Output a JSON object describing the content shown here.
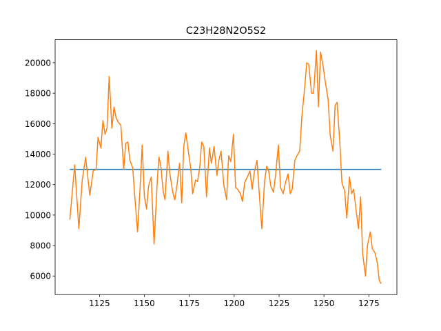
{
  "chart_data": {
    "type": "line",
    "title": "C23H28N2O5S2",
    "series": [
      {
        "color": "#1f77b4",
        "x": [
          1108.5,
          1281.9
        ],
        "values": [
          13000,
          13000
        ]
      },
      {
        "color": "#ff7f0e",
        "x": [
          1108.5,
          1111.2,
          1113.5,
          1115.4,
          1117.3,
          1119.6,
          1121.5,
          1123.1,
          1124.2,
          1125.8,
          1126.9,
          1128.1,
          1129.2,
          1130.4,
          1131.9,
          1133.1,
          1134.2,
          1135.4,
          1136.9,
          1138.5,
          1139.6,
          1140.8,
          1141.9,
          1143.5,
          1144.6,
          1146.2,
          1147.7,
          1148.8,
          1150.0,
          1151.2,
          1152.3,
          1153.8,
          1155.4,
          1157.3,
          1158.1,
          1159.2,
          1160.4,
          1161.5,
          1163.1,
          1164.2,
          1165.8,
          1166.9,
          1168.1,
          1169.6,
          1170.8,
          1171.9,
          1173.1,
          1174.2,
          1175.8,
          1176.9,
          1178.5,
          1179.6,
          1180.8,
          1181.9,
          1183.1,
          1184.6,
          1186.2,
          1187.3,
          1188.8,
          1190.4,
          1191.5,
          1192.7,
          1194.2,
          1195.8,
          1196.9,
          1198.1,
          1199.6,
          1200.8,
          1201.9,
          1203.5,
          1204.6,
          1205.8,
          1207.3,
          1208.8,
          1210.0,
          1211.2,
          1212.7,
          1214.2,
          1215.4,
          1216.9,
          1218.1,
          1219.2,
          1220.4,
          1221.9,
          1223.1,
          1224.6,
          1225.8,
          1227.3,
          1228.5,
          1230.0,
          1231.2,
          1232.3,
          1233.8,
          1235.0,
          1236.5,
          1237.7,
          1239.2,
          1240.4,
          1241.5,
          1243.1,
          1244.2,
          1245.8,
          1246.9,
          1248.1,
          1249.6,
          1250.8,
          1252.3,
          1253.5,
          1255.0,
          1256.2,
          1257.3,
          1258.8,
          1260.0,
          1261.5,
          1262.7,
          1264.2,
          1265.4,
          1266.5,
          1268.1,
          1269.2,
          1270.4,
          1271.5,
          1273.1,
          1274.2,
          1275.8,
          1276.9,
          1278.5,
          1279.6,
          1280.8,
          1281.9
        ],
        "values": [
          9700,
          13300,
          9100,
          12300,
          13800,
          11300,
          12900,
          13000,
          15100,
          14400,
          16200,
          15300,
          15700,
          19100,
          15700,
          17100,
          16400,
          16100,
          15900,
          13000,
          14700,
          14800,
          13600,
          13100,
          11300,
          8900,
          12000,
          14600,
          11200,
          10400,
          11900,
          12500,
          8100,
          12500,
          13800,
          13200,
          11600,
          11000,
          14200,
          12700,
          11500,
          11000,
          11900,
          13400,
          10800,
          14500,
          15400,
          14400,
          13100,
          11400,
          12300,
          12200,
          13100,
          14800,
          14500,
          11200,
          14400,
          13400,
          14500,
          12600,
          13600,
          14200,
          12000,
          11000,
          13900,
          13500,
          15300,
          11800,
          11700,
          11400,
          10900,
          12100,
          12500,
          12900,
          11700,
          12800,
          13600,
          11000,
          9100,
          12200,
          13200,
          12900,
          11900,
          11500,
          12700,
          14600,
          11800,
          11400,
          12100,
          12700,
          11400,
          11700,
          13600,
          13900,
          14200,
          16500,
          18300,
          20000,
          19900,
          18000,
          18000,
          20800,
          17100,
          20700,
          19700,
          18700,
          17600,
          15200,
          14200,
          17200,
          17400,
          14800,
          12100,
          11600,
          9800,
          12500,
          11400,
          11700,
          10100,
          9100,
          11200,
          7500,
          6000,
          8000,
          8900,
          7800,
          7500,
          6900,
          5700,
          5500
        ]
      }
    ],
    "xlim": [
      1100.3,
      1290.6
    ],
    "xticks": [
      1125,
      1150,
      1175,
      1200,
      1225,
      1250,
      1275
    ],
    "ylim": [
      4780,
      21510
    ],
    "yticks": [
      6000,
      8000,
      10000,
      12000,
      14000,
      16000,
      18000,
      20000
    ]
  }
}
